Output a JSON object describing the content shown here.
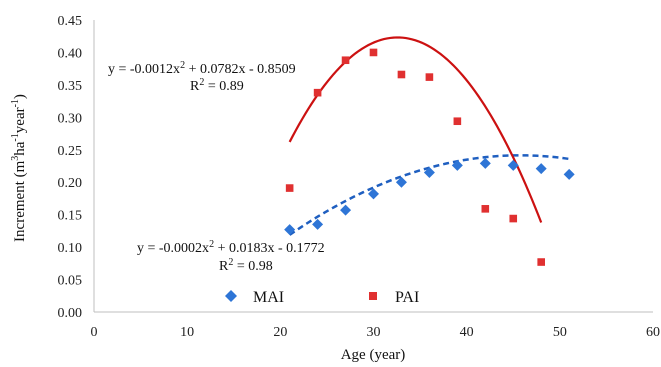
{
  "chart_data": {
    "type": "scatter",
    "xlabel": "Age (year)",
    "ylabel_main": "Increment  (m",
    "ylabel_sup1": "3",
    "ylabel_mid1": "ha",
    "ylabel_sup2": "-1",
    "ylabel_mid2": "year",
    "ylabel_sup3": "-1",
    "ylabel_end": ")",
    "xlim": [
      0,
      60
    ],
    "ylim": [
      0,
      0.45
    ],
    "x_ticks": [
      "0",
      "10",
      "20",
      "30",
      "40",
      "50",
      "60"
    ],
    "y_ticks": [
      "0.00",
      "0.05",
      "0.10",
      "0.15",
      "0.20",
      "0.25",
      "0.30",
      "0.35",
      "0.40",
      "0.45"
    ],
    "grid": false,
    "legend_position": "bottom-left",
    "series": [
      {
        "name": "MAI",
        "marker": "diamond",
        "color": "#2e75d6",
        "x": [
          21,
          24,
          27,
          30,
          33,
          36,
          39,
          42,
          45,
          48,
          51
        ],
        "y": [
          0.127,
          0.135,
          0.157,
          0.182,
          0.2,
          0.215,
          0.226,
          0.229,
          0.226,
          0.221,
          0.212
        ],
        "trendline": {
          "style": "dashed",
          "color": "#1f5fc0",
          "coefficients": [
            -0.0002,
            0.0183,
            -0.1772
          ],
          "x_range": [
            21,
            51
          ],
          "equation_text": "y = -0.0002x",
          "equation_sup": "2",
          "equation_rest": " + 0.0183x - 0.1772",
          "r2_text": "R",
          "r2_sup": "2",
          "r2_rest": " = 0.98"
        }
      },
      {
        "name": "PAI",
        "marker": "square",
        "color": "#e03030",
        "x": [
          21,
          24,
          27,
          30,
          33,
          36,
          39,
          42,
          45,
          48
        ],
        "y": [
          0.191,
          0.338,
          0.388,
          0.4,
          0.366,
          0.362,
          0.294,
          0.159,
          0.144,
          0.077
        ],
        "trendline": {
          "style": "solid",
          "color": "#cc1111",
          "coefficients": [
            -0.0012,
            0.0782,
            -0.8509
          ],
          "x_range": [
            21,
            48
          ],
          "equation_text": "y = -0.0012x",
          "equation_sup": "2",
          "equation_rest": " + 0.0782x - 0.8509",
          "r2_text": "R",
          "r2_sup": "2",
          "r2_rest": " = 0.89"
        }
      }
    ]
  }
}
